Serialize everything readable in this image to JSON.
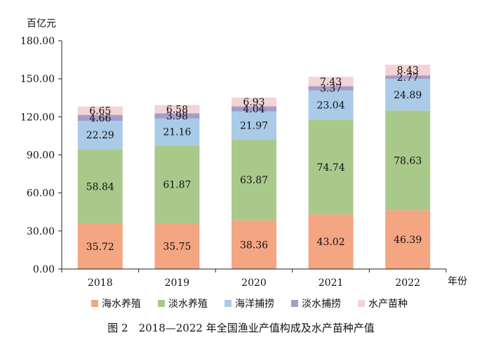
{
  "chart_data": {
    "type": "bar",
    "stacked": true,
    "title": "",
    "caption": "图 2　2018—2022 年全国渔业产值构成及水产苗种产值",
    "ylabel": "百亿元",
    "xlabel": "年份",
    "categories": [
      "2018",
      "2019",
      "2020",
      "2021",
      "2022"
    ],
    "ylim": [
      0,
      180
    ],
    "yticks": [
      "0.00",
      "30.00",
      "60.00",
      "90.00",
      "120.00",
      "150.00",
      "180.00"
    ],
    "grid": false,
    "legend_position": "bottom",
    "series": [
      {
        "name": "海水养殖",
        "color": "#f4a582",
        "values": [
          35.72,
          35.75,
          38.36,
          43.02,
          46.39
        ],
        "labels": [
          "35.72",
          "35.75",
          "38.36",
          "43.02",
          "46.39"
        ]
      },
      {
        "name": "淡水养殖",
        "color": "#a9c98b",
        "values": [
          58.84,
          61.87,
          63.87,
          74.74,
          78.63
        ],
        "labels": [
          "58.84",
          "61.87",
          "63.87",
          "74.74",
          "78.63"
        ]
      },
      {
        "name": "海洋捕捞",
        "color": "#a9cbe8",
        "values": [
          22.29,
          21.16,
          21.97,
          23.04,
          24.89
        ],
        "labels": [
          "22.29",
          "21.16",
          "21.97",
          "23.04",
          "24.89"
        ]
      },
      {
        "name": "淡水捕捞",
        "color": "#a59cc9",
        "values": [
          4.66,
          3.98,
          4.04,
          3.37,
          2.77
        ],
        "labels": [
          "4.66",
          "3.98",
          "4.04",
          "3.37",
          "2.77"
        ]
      },
      {
        "name": "水产苗种",
        "color": "#f3d3d6",
        "values": [
          6.65,
          6.58,
          6.93,
          7.43,
          8.43
        ],
        "labels": [
          "6.65",
          "6.58",
          "6.93",
          "7.43",
          "8.43"
        ]
      }
    ]
  }
}
